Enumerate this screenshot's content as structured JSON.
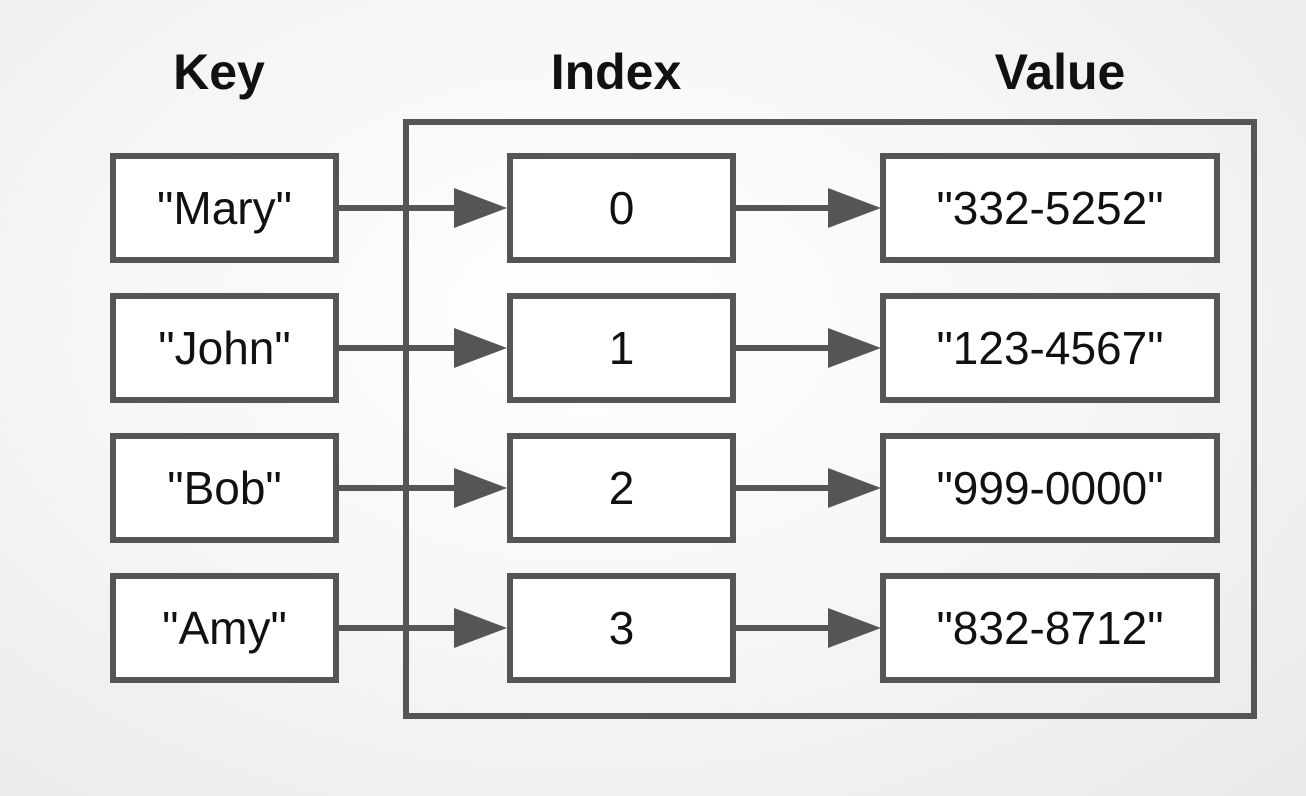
{
  "headers": {
    "key": "Key",
    "index": "Index",
    "value": "Value"
  },
  "rows": [
    {
      "key": "\"Mary\"",
      "index": "0",
      "value": "\"332-5252\""
    },
    {
      "key": "\"John\"",
      "index": "1",
      "value": "\"123-4567\""
    },
    {
      "key": "\"Bob\"",
      "index": "2",
      "value": "\"999-0000\""
    },
    {
      "key": "\"Amy\"",
      "index": "3",
      "value": "\"832-8712\""
    }
  ],
  "colors": {
    "stroke": "#555555",
    "text": "#111111",
    "box_fill": "#ffffff"
  }
}
